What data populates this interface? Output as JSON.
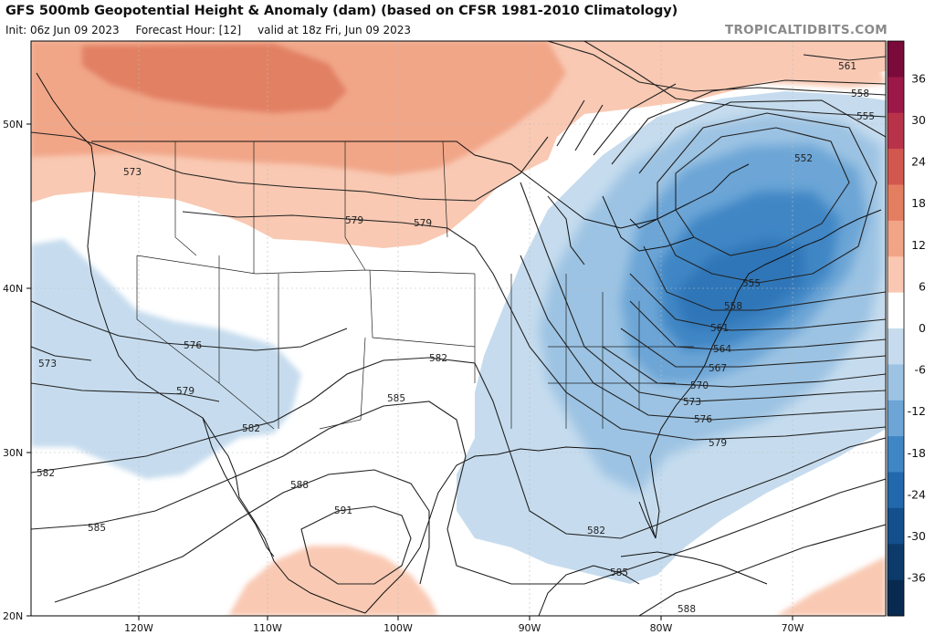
{
  "header": {
    "title": "GFS 500mb Geopotential Height & Anomaly (dam) (based on CFSR 1981-2010 Climatology)",
    "init": "Init: 06z Jun 09 2023",
    "forecast_hour": "Forecast Hour: [12]",
    "valid": "valid at 18z Fri, Jun 09 2023",
    "brand": "TROPICALTIDBITS.COM"
  },
  "axes": {
    "lon_labels": [
      "120W",
      "110W",
      "100W",
      "90W",
      "80W",
      "70W"
    ],
    "lat_labels": [
      "50N",
      "40N",
      "30N",
      "20N"
    ]
  },
  "colorbar": {
    "ticks": [
      "36",
      "30",
      "24",
      "18",
      "12",
      "6",
      "0",
      "-6",
      "-12",
      "-18",
      "-24",
      "-30",
      "-36"
    ],
    "colors": [
      "#7a0a3a",
      "#9c1848",
      "#b8334a",
      "#d2574f",
      "#e47e61",
      "#f2a487",
      "#fac8b2",
      "#ffffff",
      "#c6dcee",
      "#9cc3e3",
      "#6ca5d6",
      "#3f86c5",
      "#2168ad",
      "#134f8c",
      "#0c3a6a",
      "#082a50"
    ]
  },
  "contour_labels": [
    "561",
    "558",
    "555",
    "552",
    "573",
    "579",
    "579",
    "573",
    "576",
    "579",
    "582",
    "582",
    "585",
    "588",
    "591",
    "585",
    "555",
    "558",
    "561",
    "564",
    "567",
    "570",
    "573",
    "576",
    "579",
    "582",
    "585",
    "588",
    "582"
  ]
}
